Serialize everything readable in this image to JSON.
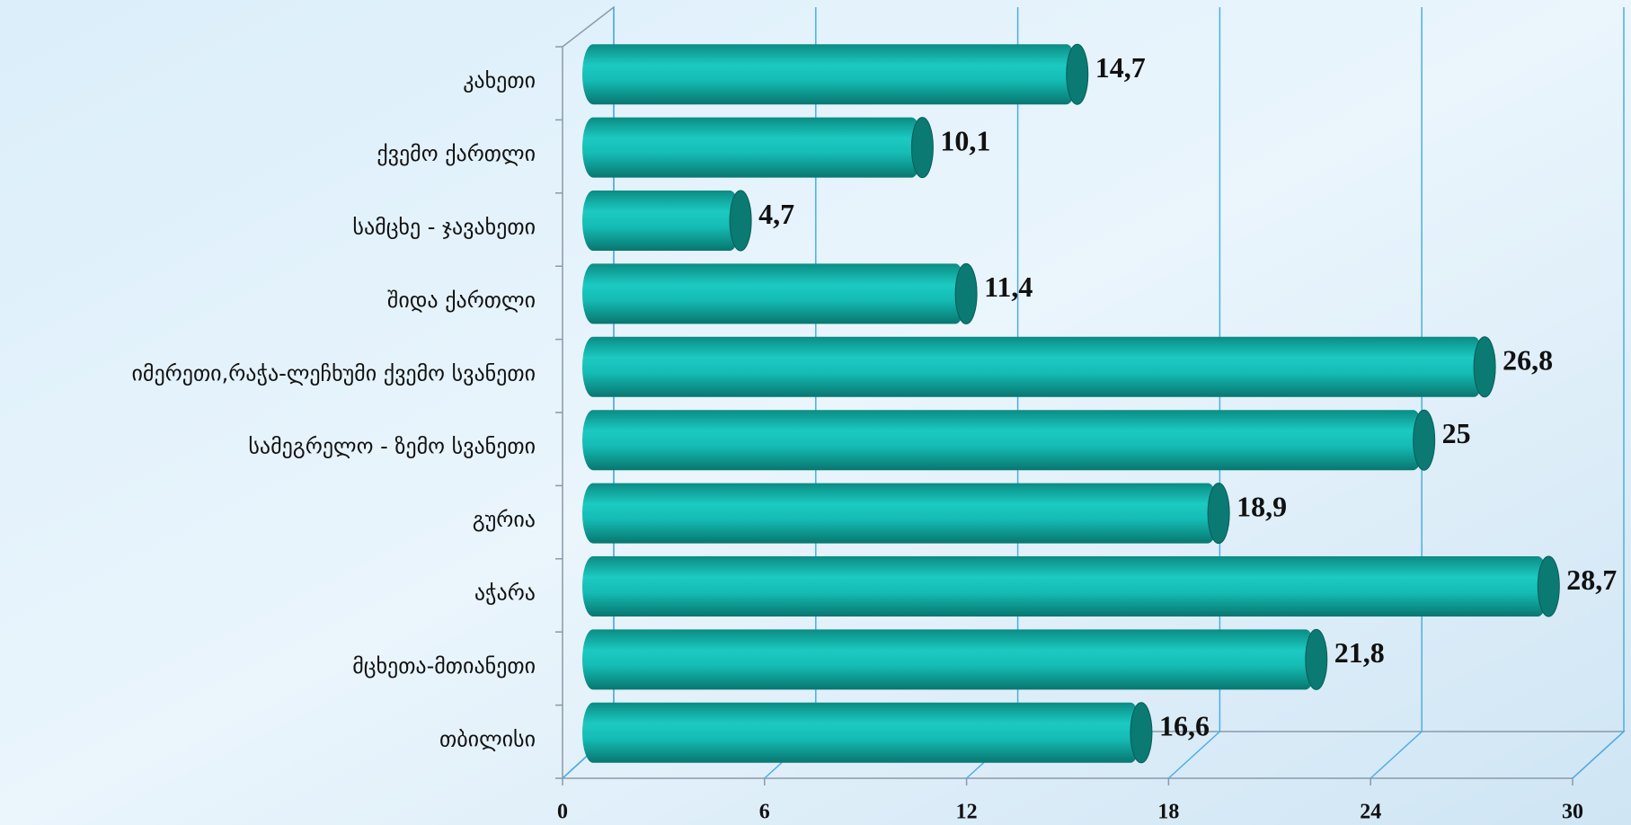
{
  "chart_data": {
    "type": "bar",
    "orientation": "horizontal",
    "categories": [
      "კახეთი",
      "ქვემო ქართლი",
      "სამცხე - ჯავახეთი",
      "შიდა ქართლი",
      "იმერეთი,რაჭა-ლეჩხუმი  ქვემო სვანეთი",
      "სამეგრელო - ზემო სვანეთი",
      "გურია",
      "აჭარა",
      "მცხეთა-მთიანეთი",
      "თბილისი"
    ],
    "values": [
      14.7,
      10.1,
      4.7,
      11.4,
      26.8,
      25,
      18.9,
      28.7,
      21.8,
      16.6
    ],
    "value_labels": [
      "14,7",
      "10,1",
      "4,7",
      "11,4",
      "26,8",
      "25",
      "18,9",
      "28,7",
      "21,8",
      "16,6"
    ],
    "color": "#12b3ab",
    "xlim": [
      0,
      30
    ],
    "xticks": [
      0,
      6,
      12,
      18,
      24,
      30
    ],
    "grid": true
  }
}
